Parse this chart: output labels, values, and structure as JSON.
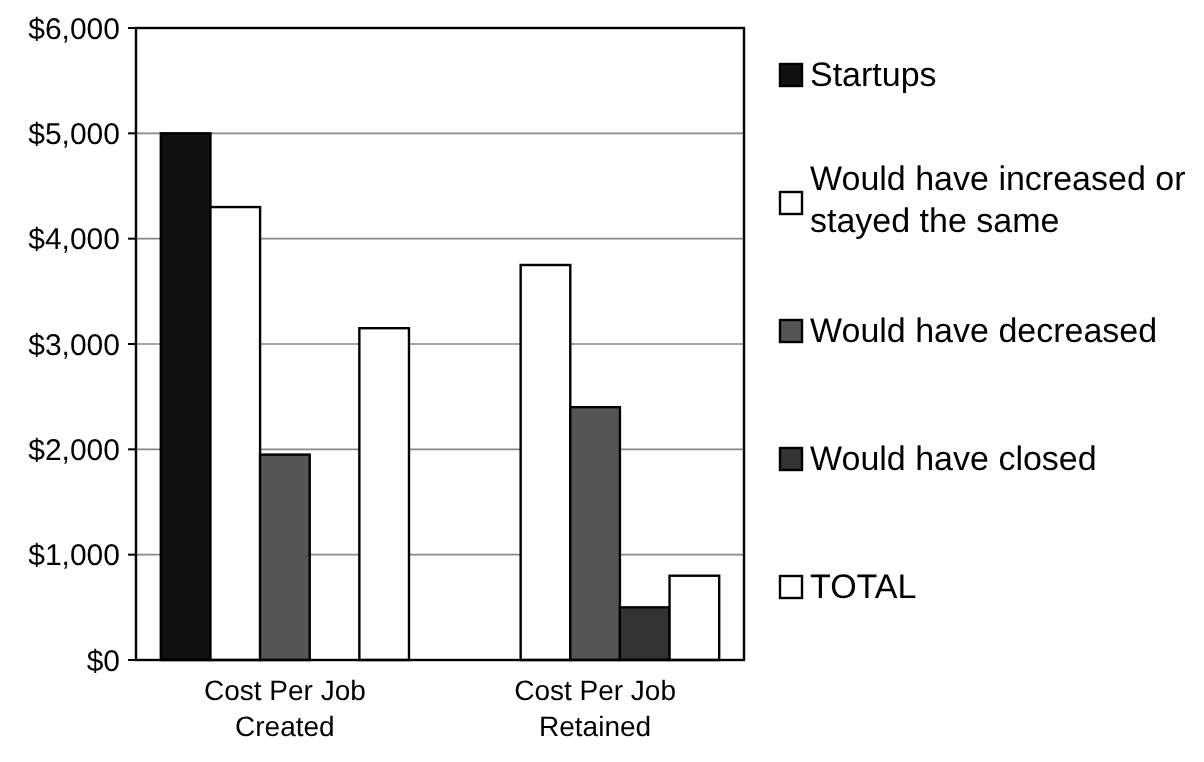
{
  "chart_data": {
    "type": "bar",
    "categories": [
      "Cost Per Job Created",
      "Cost Per Job Retained"
    ],
    "series": [
      {
        "name": "Startups",
        "color": "#111111",
        "values": [
          5000,
          null
        ]
      },
      {
        "name": "Would have increased or stayed the same",
        "color": "#ffffff",
        "values": [
          4300,
          3750
        ]
      },
      {
        "name": "Would have decreased",
        "color": "#555555",
        "values": [
          1950,
          2400
        ]
      },
      {
        "name": "Would have closed",
        "color": "#333333",
        "values": [
          null,
          500
        ]
      },
      {
        "name": "TOTAL",
        "color": "#ffffff",
        "values": [
          3150,
          800
        ]
      }
    ],
    "ylim": [
      0,
      6000
    ],
    "yticks": [
      {
        "value": 0,
        "label": "$0"
      },
      {
        "value": 1000,
        "label": "$1,000"
      },
      {
        "value": 2000,
        "label": "$2,000"
      },
      {
        "value": 3000,
        "label": "$3,000"
      },
      {
        "value": 4000,
        "label": "$4,000"
      },
      {
        "value": 5000,
        "label": "$5,000"
      },
      {
        "value": 6000,
        "label": "$6,000"
      }
    ],
    "grid": "y",
    "legend": "right"
  }
}
